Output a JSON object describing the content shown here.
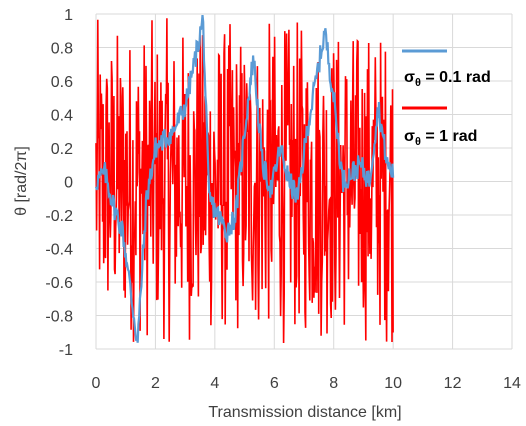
{
  "chart_data": {
    "type": "line",
    "title": "",
    "xlabel": "Transmission distance [km]",
    "ylabel_main": "θ [rad/2π]",
    "xlim": [
      0,
      14
    ],
    "ylim": [
      -1,
      1
    ],
    "x_ticks": [
      "0",
      "2",
      "4",
      "6",
      "8",
      "10",
      "12",
      "14"
    ],
    "y_ticks": [
      "1",
      "0.8",
      "0.6",
      "0.4",
      "0.2",
      "0",
      "-0.2",
      "-0.4",
      "-0.6",
      "-0.8",
      "-1"
    ],
    "grid": true,
    "legend_position": "right",
    "series": [
      {
        "name_main": "σ",
        "name_sub": "θ",
        "name_rest": " = 0.1 rad",
        "color": "#5B9BD5",
        "x": [
          0.0,
          0.3,
          0.6,
          0.9,
          1.2,
          1.4,
          1.7,
          2.0,
          2.3,
          2.6,
          3.0,
          3.3,
          3.6,
          3.8,
          4.1,
          4.4,
          4.7,
          5.0,
          5.3,
          5.6,
          5.9,
          6.2,
          6.5,
          6.8,
          7.1,
          7.4,
          7.7,
          8.0,
          8.3,
          8.6,
          8.9,
          9.2,
          9.5,
          9.8,
          10.0
        ],
        "y": [
          0.0,
          0.05,
          -0.15,
          -0.3,
          -0.7,
          -0.97,
          -0.1,
          0.2,
          0.25,
          0.3,
          0.45,
          0.7,
          0.97,
          -0.1,
          -0.2,
          -0.3,
          -0.2,
          0.3,
          0.75,
          0.1,
          -0.05,
          0.2,
          0.0,
          -0.1,
          0.3,
          0.6,
          0.9,
          0.5,
          0.0,
          0.05,
          0.1,
          0.0,
          0.45,
          0.1,
          0.05
        ]
      },
      {
        "name_main": "σ",
        "name_sub": "θ",
        "name_rest": " = 1 rad",
        "color": "#FF0000",
        "x_range": [
          0,
          10
        ],
        "value_range": [
          -1,
          1
        ],
        "points": 500
      }
    ]
  }
}
